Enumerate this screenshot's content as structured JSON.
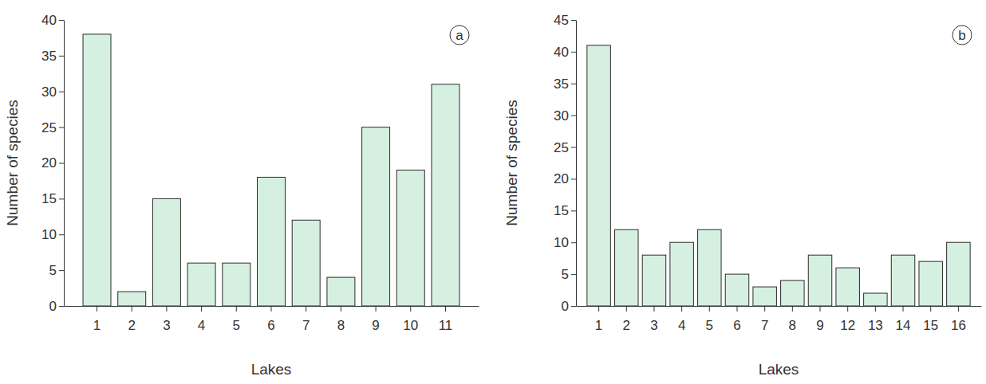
{
  "chart_data": [
    {
      "type": "bar",
      "x_label": "Lakes",
      "y_label": "Number of species",
      "annotations": [
        "a"
      ],
      "categories": [
        "1",
        "2",
        "3",
        "4",
        "5",
        "6",
        "7",
        "8",
        "9",
        "10",
        "11"
      ],
      "values": [
        38,
        2,
        15,
        6,
        6,
        18,
        12,
        4,
        25,
        19,
        31
      ],
      "color": "#d5f0e0",
      "ylim": [
        0,
        40
      ],
      "yticks": [
        0,
        5,
        10,
        15,
        20,
        25,
        30,
        35,
        40
      ],
      "grid": false
    },
    {
      "type": "bar",
      "x_label": "Lakes",
      "y_label": "Number of species",
      "annotations": [
        "b"
      ],
      "categories": [
        "1",
        "2",
        "3",
        "4",
        "5",
        "6",
        "7",
        "8",
        "9",
        "12",
        "13",
        "14",
        "15",
        "16"
      ],
      "values": [
        41,
        12,
        8,
        10,
        12,
        5,
        3,
        4,
        8,
        6,
        2,
        8,
        7,
        10
      ],
      "color": "#d5f0e0",
      "ylim": [
        0,
        45
      ],
      "yticks": [
        0,
        5,
        10,
        15,
        20,
        25,
        30,
        35,
        40,
        45
      ],
      "grid": false
    }
  ]
}
